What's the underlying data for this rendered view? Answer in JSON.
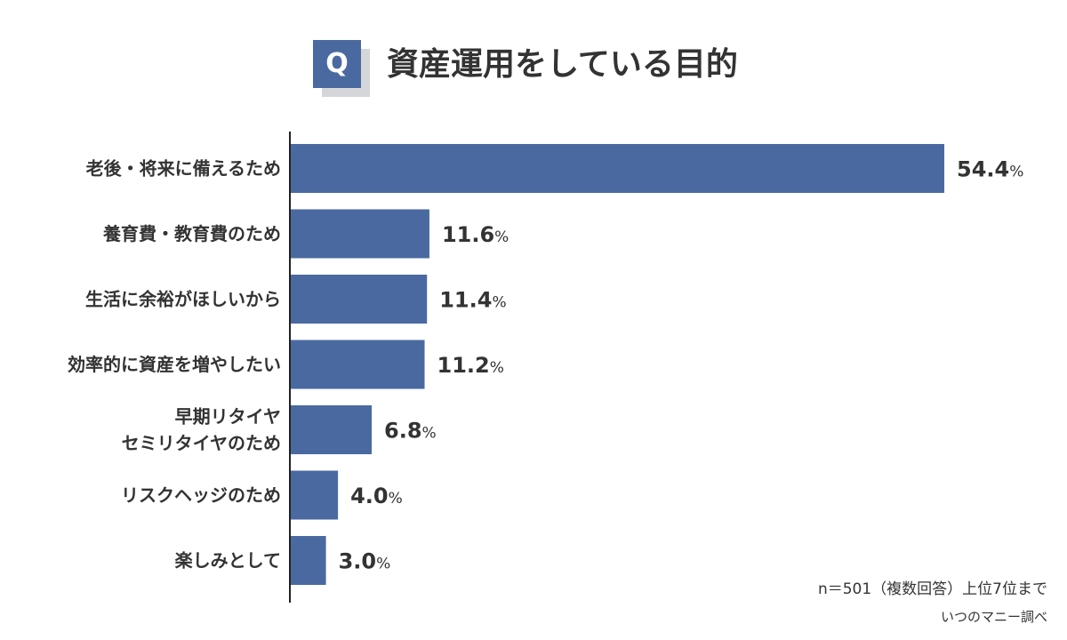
{
  "header": {
    "q_badge": "Q",
    "title": "資産運用をしている目的"
  },
  "chart_data": {
    "type": "bar",
    "orientation": "horizontal",
    "categories": [
      [
        "老後・将来に備えるため"
      ],
      [
        "養育費・教育費のため"
      ],
      [
        "生活に余裕がほしいから"
      ],
      [
        "効率的に資産を増やしたい"
      ],
      [
        "早期リタイヤ",
        "セミリタイヤのため"
      ],
      [
        "リスクヘッジのため"
      ],
      [
        "楽しみとして"
      ]
    ],
    "values": [
      54.4,
      11.6,
      11.4,
      11.2,
      6.8,
      4.0,
      3.0
    ],
    "value_labels": [
      "54.4",
      "11.6",
      "11.4",
      "11.2",
      "6.8",
      "4.0",
      "3.0"
    ],
    "unit": "%",
    "xlim": [
      0,
      54.4
    ],
    "grid": false,
    "bar_color": "#4a69a0"
  },
  "notes": {
    "sample": "n＝501（複数回答）上位7位まで",
    "source": "いつのマニー調べ"
  }
}
